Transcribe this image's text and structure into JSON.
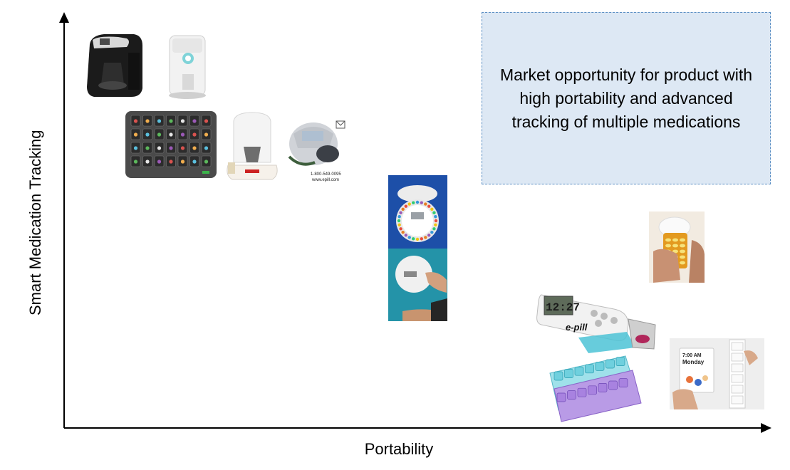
{
  "axes": {
    "x_label": "Portability",
    "y_label": "Smart Medication Tracking"
  },
  "callout": {
    "text": "Market opportunity for product with high portability and advanced tracking of multiple medications"
  },
  "products": [
    {
      "name": "countertop-dispenser-black",
      "icon": "dispenser-icon"
    },
    {
      "name": "countertop-dispenser-white-tower",
      "icon": "dispenser-icon"
    },
    {
      "name": "weekly-grid-organizer",
      "icon": "pill-grid-icon"
    },
    {
      "name": "philips-dome-dispenser",
      "icon": "dispenser-icon"
    },
    {
      "name": "epill-home-dispenser",
      "icon": "dispenser-icon",
      "phone": "1-800-549-0095",
      "web": "www.epill.com"
    },
    {
      "name": "round-locking-dispenser",
      "icon": "carousel-icon"
    },
    {
      "name": "round-dispenser-in-hand",
      "icon": "carousel-icon"
    },
    {
      "name": "pill-bottle-cap",
      "icon": "bottle-icon"
    },
    {
      "name": "epill-portable-timer",
      "icon": "timer-icon",
      "display": "12:27",
      "brand": "e-pill"
    },
    {
      "name": "weekly-pill-box",
      "icon": "pill-box-icon"
    },
    {
      "name": "pill-packet-strip",
      "icon": "packet-icon",
      "packet_time": "7:00 AM",
      "packet_day": "Monday"
    }
  ]
}
